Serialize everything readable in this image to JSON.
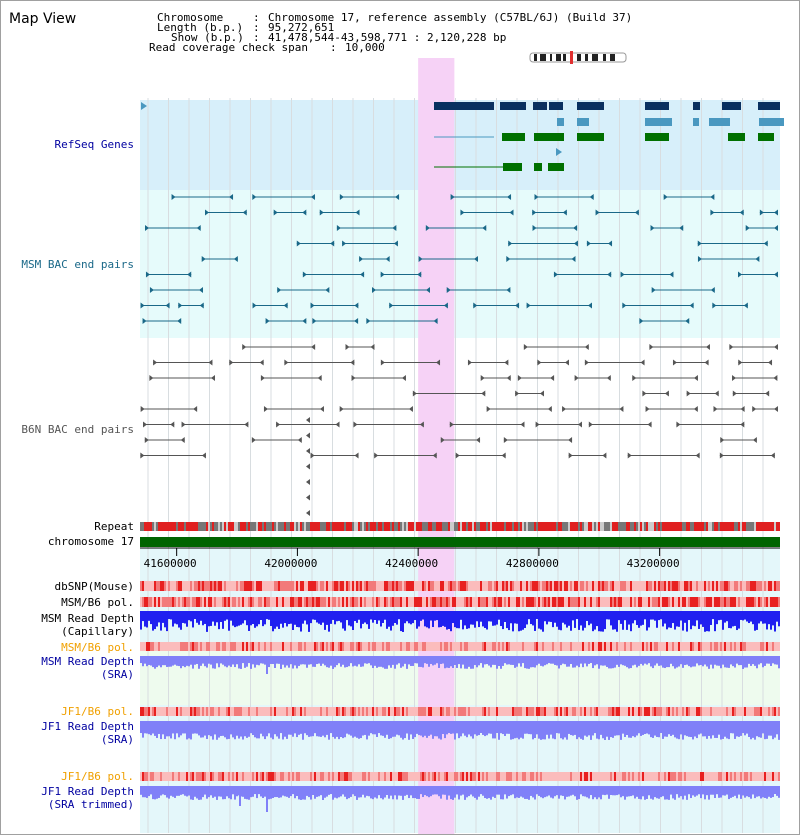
{
  "view": {
    "title": "Map View"
  },
  "header": {
    "chromosome_label": "Chromosome",
    "chromosome_value": "Chromosome 17, reference assembly (C57BL/6J) (Build 37)",
    "length_label": "Length (b.p.)",
    "length_value": "95,272,651",
    "show_label": "Show (b.p.)",
    "show_value": "41,478,544-43,598,771 : 2,120,228 bp",
    "coverage_label": "Read coverage check span",
    "coverage_value": "10,000"
  },
  "tracks": {
    "refseq": "RefSeq Genes",
    "msm_bac": "MSM BAC end pairs",
    "b6n_bac": "B6N BAC end pairs",
    "repeat": "Repeat",
    "chromosome": "chromosome 17",
    "dbsnp": "dbSNP(Mouse)",
    "msm_b6_pol_1": "MSM/B6 pol.",
    "msm_depth_cap_1": "MSM Read Depth",
    "msm_depth_cap_2": "(Capillary)",
    "msm_b6_pol_2": "MSM/B6 pol.",
    "msm_depth_sra_1": "MSM Read Depth",
    "msm_depth_sra_2": "(SRA)",
    "jf1_b6_pol_1": "JF1/B6 pol.",
    "jf1_depth_sra_1": "JF1 Read Depth",
    "jf1_depth_sra_2": "(SRA)",
    "jf1_b6_pol_2": "JF1/B6 pol.",
    "jf1_depth_trim_1": "JF1 Read Depth",
    "jf1_depth_trim_2": "(SRA trimmed)"
  },
  "axis": {
    "ticks": [
      "41600000",
      "42000000",
      "42400000",
      "42800000",
      "43200000"
    ],
    "tick_values": [
      41600000,
      42000000,
      42400000,
      42800000,
      43200000
    ],
    "range": [
      41478544,
      43598771
    ]
  },
  "highlight": {
    "start": 42400000,
    "end": 42520000
  },
  "colors": {
    "refseq_bg": "#d7effa",
    "bac_bg": "#e6fbfb",
    "highlight": "#f6d2f6",
    "dark_gene": "#0a3060",
    "mid_gene": "#4a98c0",
    "green_gene": "#007000",
    "msm_bac": "#1a6888",
    "b6n_bac": "#555555",
    "depth_blue": "#2020f0",
    "depth_light": "#8080f8",
    "chrom_green": "#006400",
    "label_orange": "#f0a000",
    "label_navy": "#0000a0",
    "label_teal": "#1a6888"
  }
}
